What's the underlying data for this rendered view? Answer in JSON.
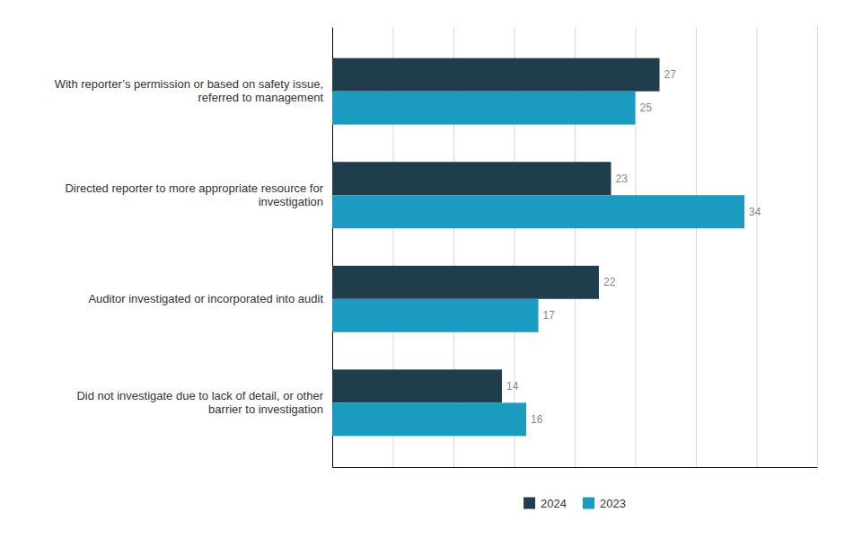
{
  "chart_data": {
    "type": "bar",
    "orientation": "horizontal",
    "categories": [
      "Did not investigate due to lack of detail, or other\nbarrier to investigation",
      "Auditor investigated or incorporated into audit",
      "Directed reporter to more appropriate resource for\ninvestigation",
      "With reporter’s permission or based on safety issue,\nreferred to management"
    ],
    "series": [
      {
        "name": "2024",
        "color": "#1f3d4a",
        "values": [
          14,
          22,
          23,
          27
        ]
      },
      {
        "name": "2023",
        "color": "#1a9bbf",
        "values": [
          16,
          17,
          34,
          25
        ]
      }
    ],
    "xlim": [
      0,
      40
    ],
    "xticks": [
      0,
      5,
      10,
      15,
      20,
      25,
      30,
      35,
      40
    ],
    "grid": true,
    "data_labels": true,
    "tick_labels": "y",
    "legend": "bottom"
  }
}
